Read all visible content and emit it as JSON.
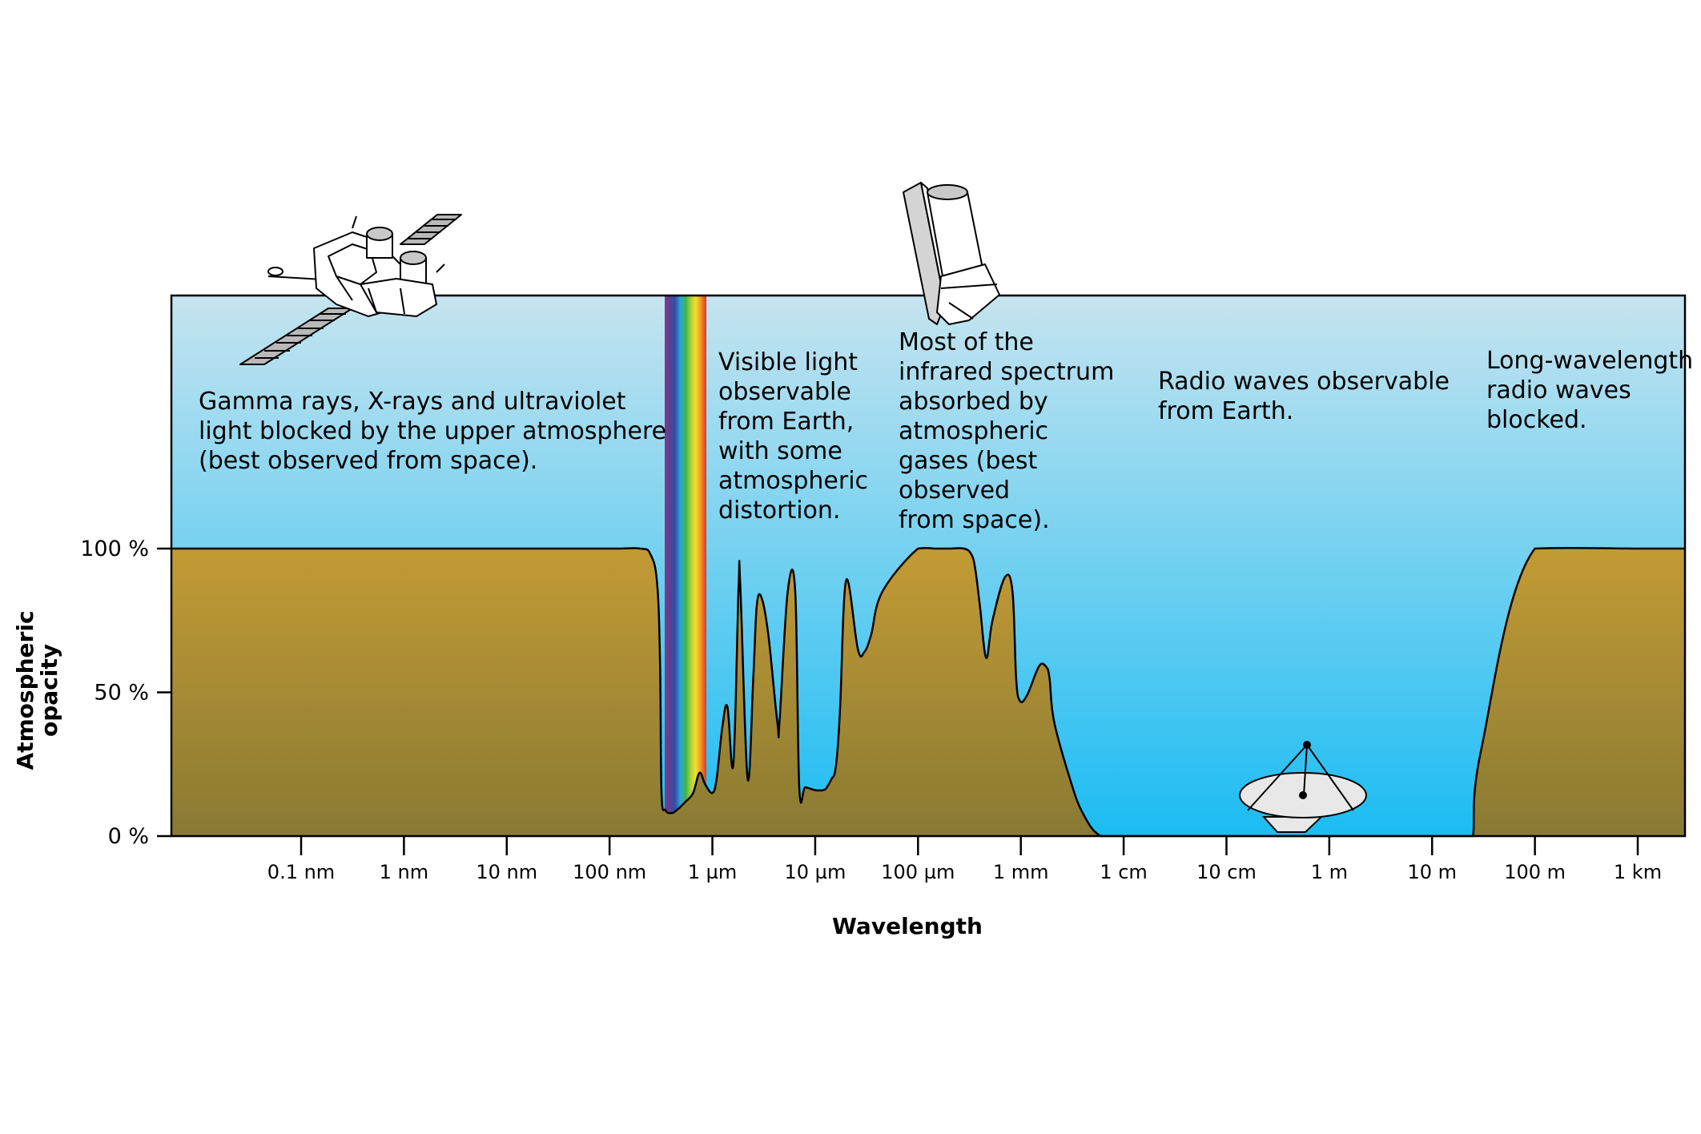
{
  "chart_data": {
    "type": "area",
    "title": "",
    "xlabel": "Wavelength",
    "ylabel": [
      "Atmospheric",
      "opacity"
    ],
    "x_scale": "log",
    "x_ticks": [
      "0.1 nm",
      "1 nm",
      "10 nm",
      "100 nm",
      "1 µm",
      "10 µm",
      "100 µm",
      "1 mm",
      "1 cm",
      "10 cm",
      "1 m",
      "10 m",
      "100 m",
      "1 km"
    ],
    "y_ticks": [
      "0 %",
      "50 %",
      "100 %"
    ],
    "ylim": [
      0,
      100
    ],
    "x_unit": "m",
    "series": [
      {
        "x": [
          1e-11,
          1e-10,
          1e-09,
          1e-08,
          1e-07,
          2e-07,
          2.5e-07,
          2.9e-07,
          3.1e-07,
          3.2e-07,
          3.5e-07,
          4e-07,
          4.5e-07,
          5.5e-07,
          6.5e-07,
          7.5e-07,
          8.5e-07,
          1e-06,
          1.1e-06,
          1.25e-06,
          1.4e-06,
          1.6e-06,
          1.8e-06,
          1.87e-06,
          2.2e-06,
          2.5e-06,
          2.7e-06,
          3e-06,
          3.5e-06,
          4.3e-06,
          4.5e-06,
          5.4e-06,
          6.4e-06,
          7e-06,
          8e-06,
          1e-05,
          1.2e-05,
          1.3e-05,
          1.45e-05,
          1.55e-05,
          1.65e-05,
          1.75e-05,
          2e-05,
          2.6e-05,
          3e-05,
          3.5e-05,
          4.5e-05,
          0.0001,
          0.00015,
          0.0002,
          0.00028,
          0.00033,
          0.00036,
          0.0004,
          0.00046,
          0.00053,
          0.0007,
          0.00083,
          0.0009,
          0.00098,
          0.00115,
          0.0015,
          0.00175,
          0.0019,
          0.0021,
          0.003,
          0.004,
          0.006,
          0.011,
          0.02,
          0.05,
          0.1,
          0.5,
          1,
          5,
          10,
          13,
          15,
          20,
          22,
          25,
          30,
          100,
          1000,
          3000
        ],
        "y": [
          100,
          100,
          100,
          100,
          100,
          100,
          98,
          88,
          60,
          15,
          9,
          8,
          9,
          12,
          15,
          22,
          18,
          15,
          20,
          38,
          45,
          25,
          87,
          87,
          20,
          55,
          80,
          83,
          70,
          39,
          40,
          85,
          85,
          17,
          17,
          16,
          16,
          17,
          20,
          22,
          30,
          45,
          89,
          65,
          64,
          70,
          85,
          100,
          100,
          100,
          100,
          98,
          93,
          80,
          62,
          75,
          90,
          85,
          55,
          47,
          49,
          59,
          59,
          55,
          40,
          20,
          8,
          0,
          0,
          0,
          0,
          0,
          0,
          0,
          0,
          0,
          0,
          0,
          0,
          0,
          0,
          30,
          100,
          100,
          100
        ]
      }
    ],
    "bands": [
      {
        "range": [
          "0.1 nm",
          "100 nm"
        ],
        "text": [
          "Gamma rays, X-rays and ultraviolet",
          "light blocked by the upper atmosphere",
          "(best observed from space)."
        ]
      },
      {
        "range": [
          "1 µm",
          "10 µm"
        ],
        "text": [
          "Visible light",
          "observable",
          "from Earth,",
          "with some",
          "atmospheric",
          "distortion."
        ]
      },
      {
        "range": [
          "100 µm",
          "1 mm"
        ],
        "text": [
          "Most of the",
          "infrared spectrum",
          "absorbed by",
          "atmospheric",
          "gases (best",
          "observed",
          "from space)."
        ]
      },
      {
        "range": [
          "1 cm",
          "1 m"
        ],
        "text": [
          "Radio waves observable",
          "from Earth."
        ]
      },
      {
        "range": [
          "100 m",
          "1 km"
        ],
        "text": [
          "Long-wavelength",
          "radio waves",
          "blocked."
        ]
      }
    ],
    "colors": {
      "sky_top": "#c6e4ef",
      "sky_bottom": "#1bbcf2",
      "ground_top": "#c39b34",
      "ground_bottom": "#897a33",
      "outline": "#000000"
    },
    "illustrations": [
      "xray-satellite-icon",
      "infrared-telescope-icon",
      "radio-dish-icon",
      "visible-spectrum-band"
    ]
  }
}
